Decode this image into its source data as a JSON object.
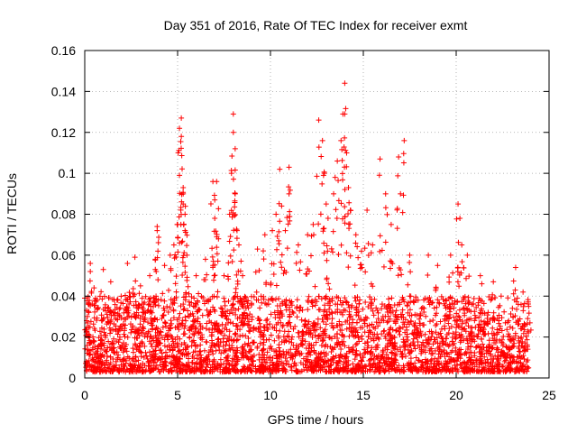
{
  "chart_data": {
    "type": "scatter",
    "title": "Day 351 of 2016, Rate Of TEC Index for receiver exmt",
    "xlabel": "GPS time / hours",
    "ylabel": "ROTI / TECUs",
    "xlim": [
      0,
      25
    ],
    "ylim": [
      0,
      0.16
    ],
    "x_ticks": [
      "0",
      "5",
      "10",
      "15",
      "20",
      "25"
    ],
    "y_ticks": [
      "0",
      "0.02",
      "0.04",
      "0.06",
      "0.08",
      "0.1",
      "0.12",
      "0.14",
      "0.16"
    ],
    "grid": true,
    "marker": "+",
    "color": "#ff0000",
    "series": [
      {
        "name": "ROTI",
        "points": [
          [
            0.0,
            0.039
          ],
          [
            0.1,
            0.033
          ],
          [
            0.3,
            0.052
          ],
          [
            0.3,
            0.056
          ],
          [
            0.5,
            0.044
          ],
          [
            1.0,
            0.053
          ],
          [
            1.4,
            0.047
          ],
          [
            2.3,
            0.056
          ],
          [
            2.7,
            0.059
          ],
          [
            3.0,
            0.045
          ],
          [
            3.5,
            0.05
          ],
          [
            3.8,
            0.058
          ],
          [
            3.9,
            0.074
          ],
          [
            3.9,
            0.072
          ],
          [
            4.3,
            0.055
          ],
          [
            4.6,
            0.06
          ],
          [
            4.8,
            0.065
          ],
          [
            5.0,
            0.075
          ],
          [
            5.1,
            0.099
          ],
          [
            5.1,
            0.122
          ],
          [
            5.2,
            0.127
          ],
          [
            5.2,
            0.118
          ],
          [
            5.3,
            0.093
          ],
          [
            5.3,
            0.09
          ],
          [
            5.3,
            0.085
          ],
          [
            5.4,
            0.08
          ],
          [
            5.4,
            0.072
          ],
          [
            5.5,
            0.06
          ],
          [
            6.0,
            0.05
          ],
          [
            6.5,
            0.058
          ],
          [
            6.9,
            0.096
          ],
          [
            7.0,
            0.087
          ],
          [
            7.0,
            0.078
          ],
          [
            7.1,
            0.096
          ],
          [
            7.2,
            0.068
          ],
          [
            7.5,
            0.05
          ],
          [
            7.8,
            0.08
          ],
          [
            7.9,
            0.1
          ],
          [
            8.0,
            0.129
          ],
          [
            8.0,
            0.12
          ],
          [
            8.1,
            0.112
          ],
          [
            8.1,
            0.09
          ],
          [
            8.2,
            0.072
          ],
          [
            8.3,
            0.065
          ],
          [
            8.5,
            0.05
          ],
          [
            9.3,
            0.063
          ],
          [
            9.7,
            0.07
          ],
          [
            10.1,
            0.072
          ],
          [
            10.3,
            0.08
          ],
          [
            10.5,
            0.102
          ],
          [
            10.6,
            0.084
          ],
          [
            10.8,
            0.072
          ],
          [
            11.0,
            0.09
          ],
          [
            11.0,
            0.103
          ],
          [
            11.5,
            0.065
          ],
          [
            12.0,
            0.07
          ],
          [
            12.3,
            0.075
          ],
          [
            12.6,
            0.126
          ],
          [
            12.8,
            0.116
          ],
          [
            12.9,
            0.1
          ],
          [
            13.0,
            0.085
          ],
          [
            13.1,
            0.078
          ],
          [
            13.4,
            0.09
          ],
          [
            13.6,
            0.106
          ],
          [
            13.8,
            0.116
          ],
          [
            13.9,
            0.129
          ],
          [
            14.0,
            0.144
          ],
          [
            14.0,
            0.129
          ],
          [
            14.1,
            0.11
          ],
          [
            14.2,
            0.093
          ],
          [
            14.3,
            0.082
          ],
          [
            14.6,
            0.07
          ],
          [
            14.9,
            0.062
          ],
          [
            15.2,
            0.082
          ],
          [
            15.5,
            0.065
          ],
          [
            15.9,
            0.107
          ],
          [
            16.2,
            0.09
          ],
          [
            16.5,
            0.075
          ],
          [
            16.9,
            0.108
          ],
          [
            17.0,
            0.09
          ],
          [
            17.2,
            0.116
          ],
          [
            17.5,
            0.06
          ],
          [
            18.5,
            0.06
          ],
          [
            19.0,
            0.055
          ],
          [
            19.7,
            0.06
          ],
          [
            20.1,
            0.085
          ],
          [
            20.2,
            0.078
          ],
          [
            20.3,
            0.065
          ],
          [
            20.6,
            0.06
          ],
          [
            21.3,
            0.05
          ],
          [
            22.0,
            0.047
          ],
          [
            23.2,
            0.054
          ],
          [
            23.6,
            0.042
          ],
          [
            23.9,
            0.035
          ]
        ]
      }
    ],
    "baseline_band": {
      "note": "dense cloud of markers spanning whole day",
      "x_range": [
        0,
        23.9
      ],
      "y_range": [
        0.003,
        0.04
      ]
    }
  }
}
